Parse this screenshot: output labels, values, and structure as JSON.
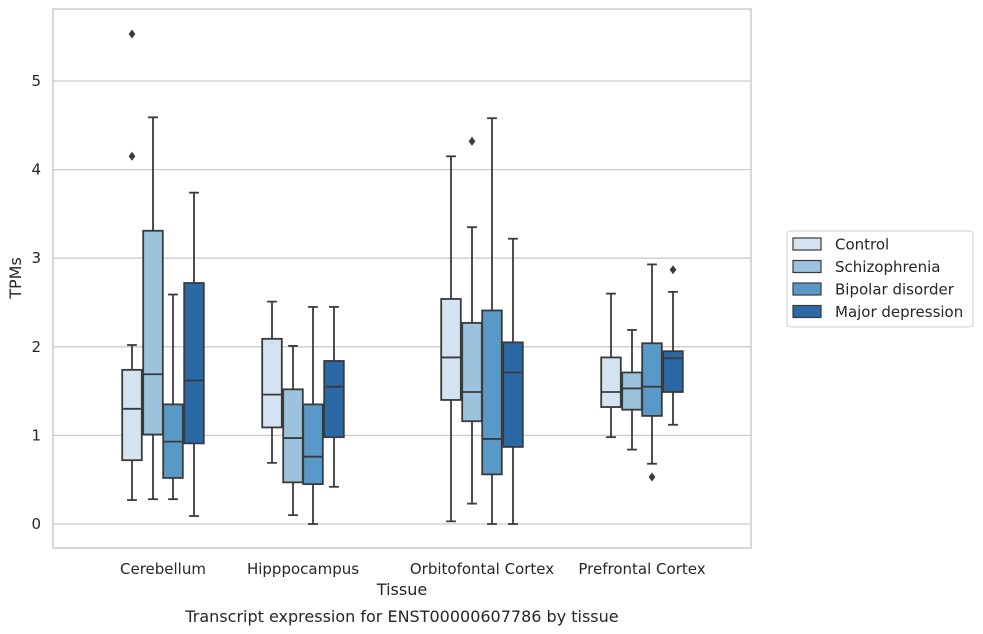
{
  "chart_data": {
    "type": "box",
    "title": "",
    "caption": "Transcript expression for ENST00000607786 by tissue",
    "xlabel": "Tissue",
    "ylabel": "TPMs",
    "ylim": [
      -0.27,
      5.82
    ],
    "yticks": [
      0,
      1,
      2,
      3,
      4,
      5
    ],
    "grid": "horizontal",
    "legend_position": "right",
    "categories": [
      "Cerebellum",
      "Hipppocampus",
      "Orbitofontal Cortex",
      "Prefrontal Cortex"
    ],
    "series": [
      {
        "name": "Control",
        "color": "#d4e3f2",
        "boxes": [
          {
            "whislo": 0.27,
            "q1": 0.72,
            "med": 1.3,
            "q3": 1.74,
            "whishi": 2.02,
            "fliers": [
              4.15,
              5.53
            ]
          },
          {
            "whislo": 0.69,
            "q1": 1.09,
            "med": 1.46,
            "q3": 2.09,
            "whishi": 2.51,
            "fliers": []
          },
          {
            "whislo": 0.03,
            "q1": 1.4,
            "med": 1.88,
            "q3": 2.54,
            "whishi": 4.15,
            "fliers": []
          },
          {
            "whislo": 0.98,
            "q1": 1.32,
            "med": 1.49,
            "q3": 1.88,
            "whishi": 2.6,
            "fliers": []
          }
        ]
      },
      {
        "name": "Schizophrenia",
        "color": "#9cc3dd",
        "boxes": [
          {
            "whislo": 0.28,
            "q1": 1.01,
            "med": 1.69,
            "q3": 3.31,
            "whishi": 4.59,
            "fliers": []
          },
          {
            "whislo": 0.1,
            "q1": 0.47,
            "med": 0.97,
            "q3": 1.52,
            "whishi": 2.01,
            "fliers": []
          },
          {
            "whislo": 0.23,
            "q1": 1.16,
            "med": 1.49,
            "q3": 2.27,
            "whishi": 3.35,
            "fliers": [
              4.32
            ]
          },
          {
            "whislo": 0.84,
            "q1": 1.29,
            "med": 1.53,
            "q3": 1.71,
            "whishi": 2.19,
            "fliers": []
          }
        ]
      },
      {
        "name": "Bipolar disorder",
        "color": "#5899c8",
        "boxes": [
          {
            "whislo": 0.28,
            "q1": 0.52,
            "med": 0.93,
            "q3": 1.35,
            "whishi": 2.59,
            "fliers": []
          },
          {
            "whislo": 0.0,
            "q1": 0.45,
            "med": 0.76,
            "q3": 1.35,
            "whishi": 2.45,
            "fliers": []
          },
          {
            "whislo": 0.0,
            "q1": 0.56,
            "med": 0.96,
            "q3": 2.41,
            "whishi": 4.58,
            "fliers": []
          },
          {
            "whislo": 0.68,
            "q1": 1.22,
            "med": 1.55,
            "q3": 2.04,
            "whishi": 2.93,
            "fliers": [
              0.53
            ]
          }
        ]
      },
      {
        "name": "Major depression",
        "color": "#2a68a6",
        "boxes": [
          {
            "whislo": 0.09,
            "q1": 0.91,
            "med": 1.62,
            "q3": 2.72,
            "whishi": 3.74,
            "fliers": []
          },
          {
            "whislo": 0.42,
            "q1": 0.98,
            "med": 1.55,
            "q3": 1.84,
            "whishi": 2.45,
            "fliers": []
          },
          {
            "whislo": 0.0,
            "q1": 0.87,
            "med": 1.71,
            "q3": 2.05,
            "whishi": 3.22,
            "fliers": []
          },
          {
            "whislo": 1.12,
            "q1": 1.49,
            "med": 1.87,
            "q3": 1.95,
            "whishi": 2.62,
            "fliers": [
              2.87
            ]
          }
        ]
      }
    ]
  }
}
